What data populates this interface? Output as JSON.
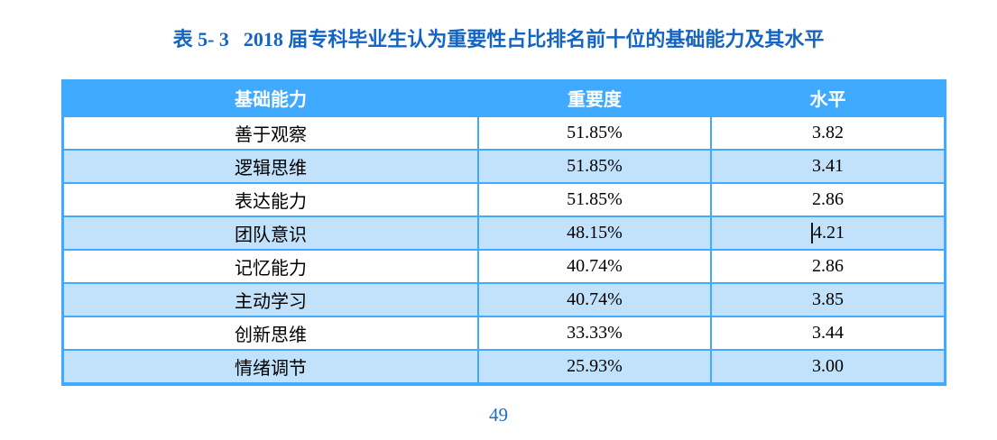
{
  "title": {
    "label": "表 5- 3",
    "text": "2018 届专科毕业生认为重要性占比排名前十位的基础能力及其水平"
  },
  "table": {
    "headers": [
      "基础能力",
      "重要度",
      "水平"
    ],
    "rows": [
      {
        "ability": "善于观察",
        "importance": "51.85%",
        "level": "3.82"
      },
      {
        "ability": "逻辑思维",
        "importance": "51.85%",
        "level": "3.41"
      },
      {
        "ability": "表达能力",
        "importance": "51.85%",
        "level": "2.86"
      },
      {
        "ability": "团队意识",
        "importance": "48.15%",
        "level": "4.21"
      },
      {
        "ability": "记忆能力",
        "importance": "40.74%",
        "level": "2.86"
      },
      {
        "ability": "主动学习",
        "importance": "40.74%",
        "level": "3.85"
      },
      {
        "ability": "创新思维",
        "importance": "33.33%",
        "level": "3.44"
      },
      {
        "ability": "情绪调节",
        "importance": "25.93%",
        "level": "3.00"
      }
    ]
  },
  "page_number": "49",
  "colors": {
    "accent_blue": "#3FAAFF",
    "row_alt_bg": "#C2E2FB",
    "row_bg": "#FFFFFF",
    "header_text": "#FFFFFF",
    "title_blue": "#1464C3",
    "body_text": "#000000",
    "page_number_blue": "#1B6FC9"
  }
}
